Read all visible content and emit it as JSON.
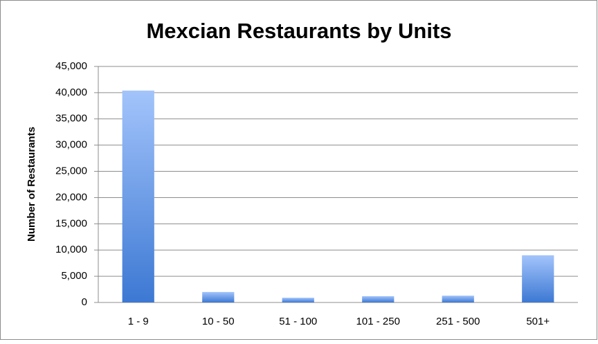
{
  "chart_data": {
    "type": "bar",
    "title": "Mexcian Restaurants by Units",
    "ylabel": "Number of Restaurants",
    "categories": [
      "1 - 9",
      "10 - 50",
      "51 - 100",
      "101 - 250",
      "251 - 500",
      "501+"
    ],
    "values": [
      40400,
      2000,
      900,
      1200,
      1300,
      9000
    ],
    "color": "#4f86d9",
    "ylim": [
      0,
      45000
    ],
    "yticks": [
      0,
      {
        "value": 5000,
        "label": "5,000"
      },
      {
        "value": 10000,
        "label": "10,000"
      },
      {
        "value": 15000,
        "label": "15,000"
      },
      {
        "value": 20000,
        "label": "20,000"
      },
      {
        "value": 25000,
        "label": "25,000"
      },
      {
        "value": 30000,
        "label": "30,000"
      },
      {
        "value": 35000,
        "label": "35,000"
      },
      {
        "value": 40000,
        "label": "40,000"
      },
      {
        "value": 45000,
        "label": "45,000"
      }
    ],
    "grid": true
  }
}
